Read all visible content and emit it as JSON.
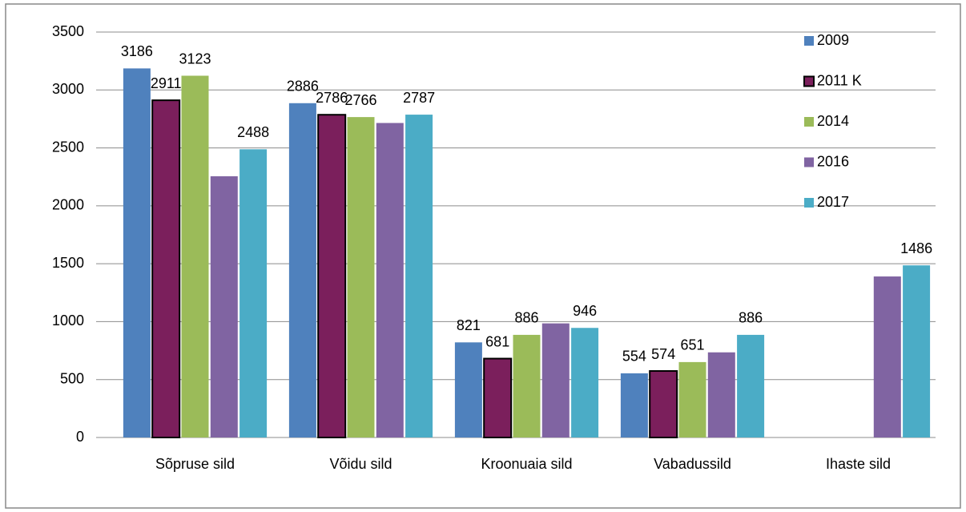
{
  "chart_data": {
    "type": "bar",
    "categories": [
      "Sõpruse sild",
      "Võidu sild",
      "Kroonuaia sild",
      "Vabadussild",
      "Ihaste sild"
    ],
    "series": [
      {
        "name": "2009",
        "color": "#4f81bd",
        "values": [
          3186,
          2886,
          821,
          554,
          null
        ],
        "show_labels": true
      },
      {
        "name": "2011 K",
        "color": "#7b1f5c",
        "edgecolor": "#000000",
        "values": [
          2911,
          2786,
          681,
          574,
          null
        ],
        "show_labels": true
      },
      {
        "name": "2014",
        "color": "#9bbb59",
        "values": [
          3123,
          2766,
          886,
          651,
          null
        ],
        "show_labels": true
      },
      {
        "name": "2016",
        "color": "#8064a2",
        "values": [
          2255,
          2715,
          985,
          735,
          1390
        ],
        "show_labels": false
      },
      {
        "name": "2017",
        "color": "#4bacc6",
        "values": [
          2488,
          2787,
          946,
          886,
          1486
        ],
        "show_labels": true
      }
    ],
    "ylim": [
      0,
      3500
    ],
    "yticks": [
      0,
      500,
      1000,
      1500,
      2000,
      2500,
      3000,
      3500
    ],
    "grid": true,
    "legend": "upper right"
  }
}
